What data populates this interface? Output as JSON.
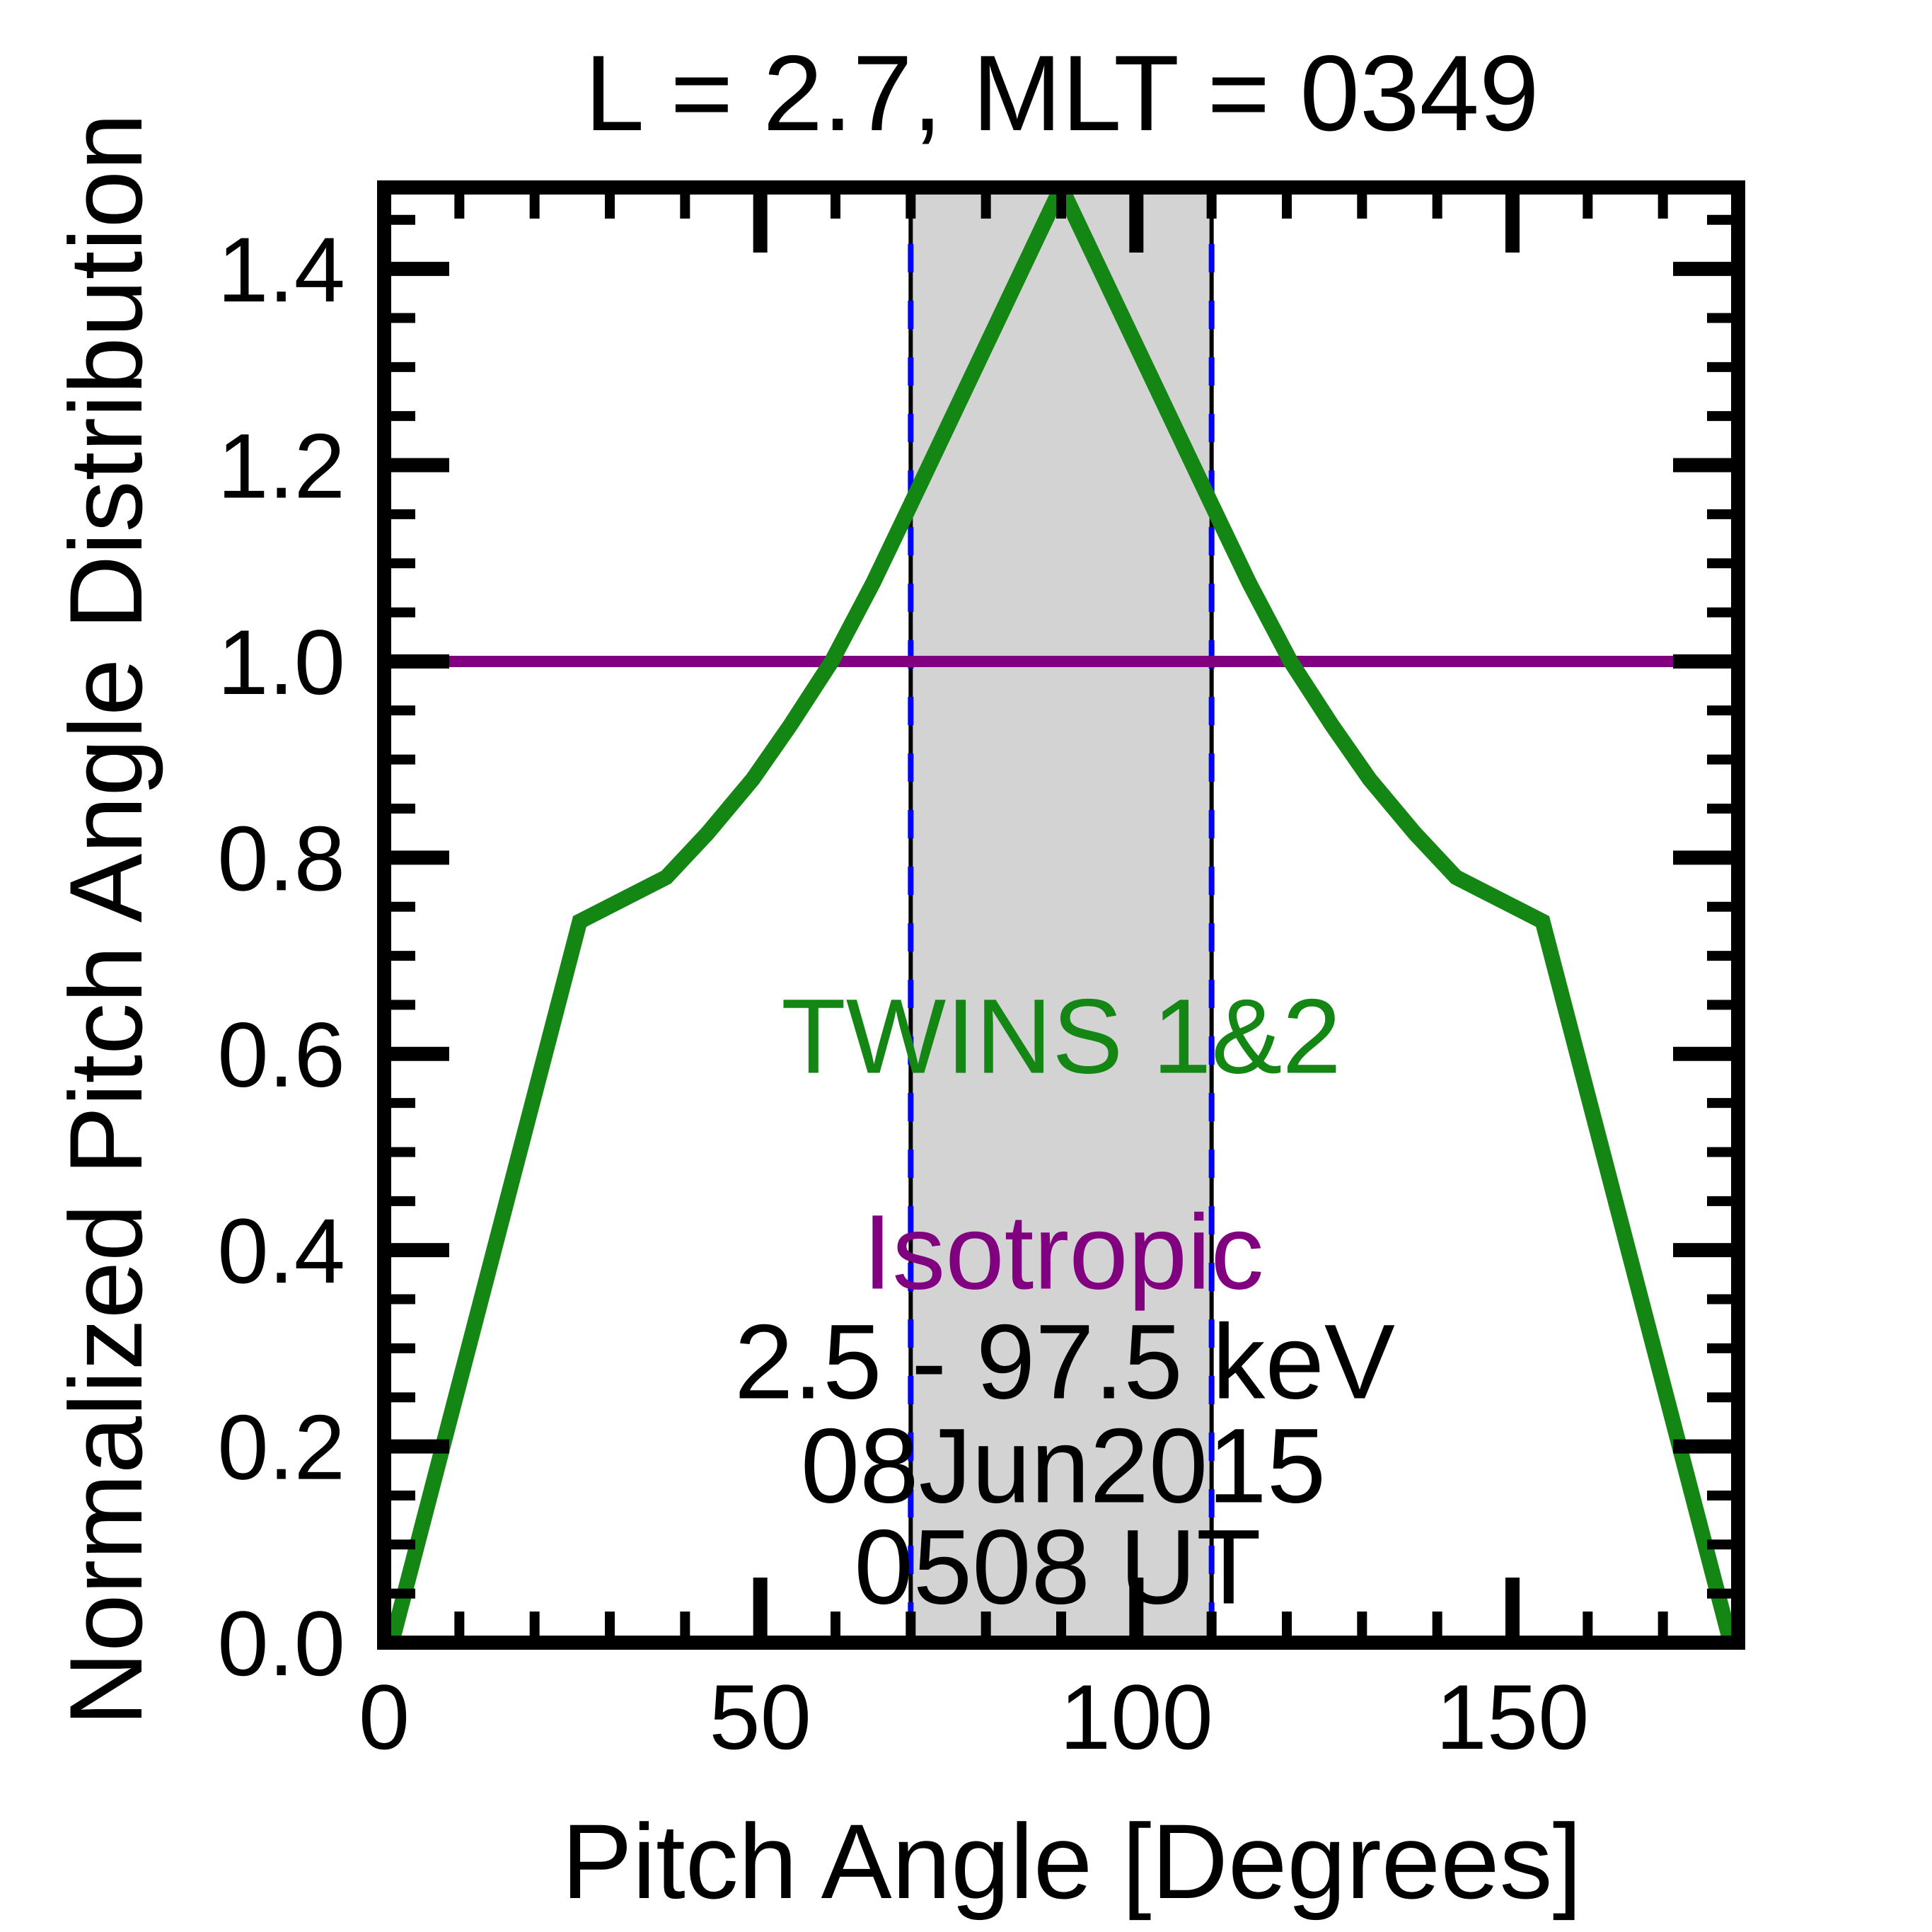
{
  "title": "L =  2.7, MLT = 0349",
  "axes": {
    "xlabel": "Pitch Angle [Degrees]",
    "ylabel": "Normalized Pitch Angle Distribution",
    "xlim": [
      0,
      180
    ],
    "ylim": [
      0,
      1.483
    ],
    "x_major_ticks": [
      0,
      50,
      100,
      150
    ],
    "x_tick_labels": [
      "0",
      "50",
      "100",
      "150"
    ],
    "x_minor_step": 10,
    "y_major_ticks": [
      0.0,
      0.2,
      0.4,
      0.6,
      0.8,
      1.0,
      1.2,
      1.4
    ],
    "y_tick_labels": [
      "0.0",
      "0.2",
      "0.4",
      "0.6",
      "0.8",
      "1.0",
      "1.2",
      "1.4"
    ],
    "y_minor_step": 0.05,
    "grid": "off",
    "tick_direction": "in",
    "frame_color": "#000000"
  },
  "chart_data": {
    "type": "line",
    "xlabel": "Pitch Angle [Degrees]",
    "ylabel": "Normalized Pitch Angle Distribution",
    "xlim": [
      0,
      180
    ],
    "ylim": [
      0,
      1.483
    ],
    "series": [
      {
        "name": "TWINS 1&2",
        "color": "#138613",
        "line_width": 22,
        "x": [
          1,
          26,
          37.5,
          43,
          49,
          54,
          59.5,
          65,
          70,
          90,
          110,
          115,
          120.5,
          126,
          131,
          137,
          142.5,
          154,
          179
        ],
        "y": [
          0.0,
          0.735,
          0.78,
          0.825,
          0.88,
          0.935,
          1.0,
          1.08,
          1.16,
          1.483,
          1.16,
          1.08,
          1.0,
          0.935,
          0.88,
          0.825,
          0.78,
          0.735,
          0.0
        ]
      },
      {
        "name": "Isotropic",
        "color": "#800080",
        "line_width": 16,
        "x": [
          0,
          180
        ],
        "y": [
          1.0,
          1.0
        ]
      }
    ],
    "shaded_band": {
      "x_start": 70,
      "x_end": 110,
      "fill_color": "#d3d3d3",
      "edge_line_colors": [
        "#0000ff",
        "#000000"
      ],
      "edge_style": "dashed"
    }
  },
  "annotations": {
    "series_label": {
      "text": "TWINS 1&2",
      "color": "#138613"
    },
    "isotropic_label": {
      "text": "Isotropic",
      "color": "#800080"
    },
    "energy_range": {
      "text": "2.5 - 97.5 keV",
      "color": "#000000"
    },
    "date": {
      "text": "08Jun2015",
      "color": "#000000"
    },
    "time": {
      "text": "0508 UT",
      "color": "#000000"
    }
  }
}
